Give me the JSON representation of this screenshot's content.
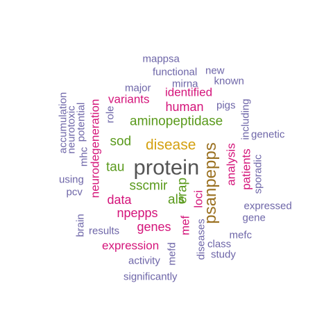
{
  "colors": {
    "purple": "#6e66a8",
    "magenta": "#d4147a",
    "green": "#5a9a1c",
    "gold": "#d4a010",
    "brown": "#9a7020",
    "gray": "#555555"
  },
  "words": [
    {
      "text": "protein",
      "color": "gray",
      "weight": 9
    },
    {
      "text": "psanpepps",
      "color": "brown",
      "weight": 8
    },
    {
      "text": "disease",
      "color": "gold",
      "weight": 6
    },
    {
      "text": "aminopeptidase",
      "color": "green",
      "weight": 5
    },
    {
      "text": "sscmir",
      "color": "green",
      "weight": 5
    },
    {
      "text": "als",
      "color": "green",
      "weight": 5
    },
    {
      "text": "erap",
      "color": "green",
      "weight": 5
    },
    {
      "text": "tau",
      "color": "green",
      "weight": 5
    },
    {
      "text": "sod",
      "color": "green",
      "weight": 5
    },
    {
      "text": "human",
      "color": "magenta",
      "weight": 4
    },
    {
      "text": "data",
      "color": "magenta",
      "weight": 4
    },
    {
      "text": "npepps",
      "color": "magenta",
      "weight": 4
    },
    {
      "text": "genes",
      "color": "magenta",
      "weight": 4
    },
    {
      "text": "variants",
      "color": "magenta",
      "weight": 4
    },
    {
      "text": "identified",
      "color": "magenta",
      "weight": 4
    },
    {
      "text": "neurodegeneration",
      "color": "magenta",
      "weight": 4
    },
    {
      "text": "expression",
      "color": "magenta",
      "weight": 4
    },
    {
      "text": "loci",
      "color": "magenta",
      "weight": 4
    },
    {
      "text": "mef",
      "color": "magenta",
      "weight": 4
    },
    {
      "text": "analysis",
      "color": "magenta",
      "weight": 4
    },
    {
      "text": "patients",
      "color": "magenta",
      "weight": 4
    },
    {
      "text": "mappsa",
      "color": "purple",
      "weight": 3
    },
    {
      "text": "functional",
      "color": "purple",
      "weight": 3
    },
    {
      "text": "new",
      "color": "purple",
      "weight": 3
    },
    {
      "text": "mirna",
      "color": "purple",
      "weight": 3
    },
    {
      "text": "known",
      "color": "purple",
      "weight": 3
    },
    {
      "text": "major",
      "color": "purple",
      "weight": 3
    },
    {
      "text": "pigs",
      "color": "purple",
      "weight": 3
    },
    {
      "text": "including",
      "color": "purple",
      "weight": 3
    },
    {
      "text": "genetic",
      "color": "purple",
      "weight": 3
    },
    {
      "text": "sporadic",
      "color": "purple",
      "weight": 3
    },
    {
      "text": "expressed",
      "color": "purple",
      "weight": 3
    },
    {
      "text": "gene",
      "color": "purple",
      "weight": 3
    },
    {
      "text": "mefc",
      "color": "purple",
      "weight": 3
    },
    {
      "text": "class",
      "color": "purple",
      "weight": 3
    },
    {
      "text": "study",
      "color": "purple",
      "weight": 3
    },
    {
      "text": "diseases",
      "color": "purple",
      "weight": 3
    },
    {
      "text": "mefd",
      "color": "purple",
      "weight": 3
    },
    {
      "text": "activity",
      "color": "purple",
      "weight": 3
    },
    {
      "text": "significantly",
      "color": "purple",
      "weight": 3
    },
    {
      "text": "results",
      "color": "purple",
      "weight": 3
    },
    {
      "text": "brain",
      "color": "purple",
      "weight": 3
    },
    {
      "text": "pcv",
      "color": "purple",
      "weight": 3
    },
    {
      "text": "using",
      "color": "purple",
      "weight": 3
    },
    {
      "text": "mhc",
      "color": "purple",
      "weight": 3
    },
    {
      "text": "neurotoxic",
      "color": "purple",
      "weight": 3
    },
    {
      "text": "potential",
      "color": "purple",
      "weight": 3
    },
    {
      "text": "accumulation",
      "color": "purple",
      "weight": 3
    },
    {
      "text": "role",
      "color": "purple",
      "weight": 3
    }
  ]
}
